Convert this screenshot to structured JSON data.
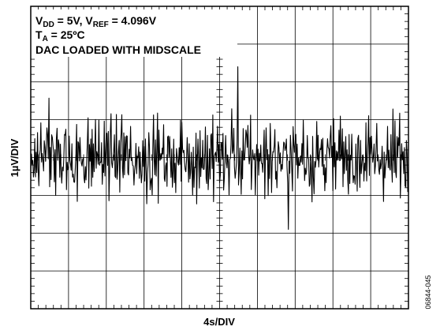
{
  "chart_data": {
    "type": "line",
    "title": "",
    "conditions": {
      "line1": {
        "v": "V",
        "dd": "DD",
        "mid": " = 5V, V",
        "ref": "REF",
        "end": " = 4.096V"
      },
      "line2": {
        "t": "T",
        "a": "A",
        "end": " = 25ºC"
      },
      "line3": "DAC LOADED WITH MIDSCALE"
    },
    "xlabel": "4s/DIV",
    "ylabel": "1µV/DIV",
    "figure_id": "06844-045",
    "grid": true,
    "divisions": {
      "x": 10,
      "y": 8
    },
    "xlim": [
      0,
      10
    ],
    "ylim": [
      -4,
      4
    ],
    "series": [
      {
        "points": 560,
        "mean": 0.0,
        "rms_divs": 0.5,
        "peak_divs": [
          -2.2,
          2.4
        ],
        "color": "#000000"
      }
    ]
  }
}
